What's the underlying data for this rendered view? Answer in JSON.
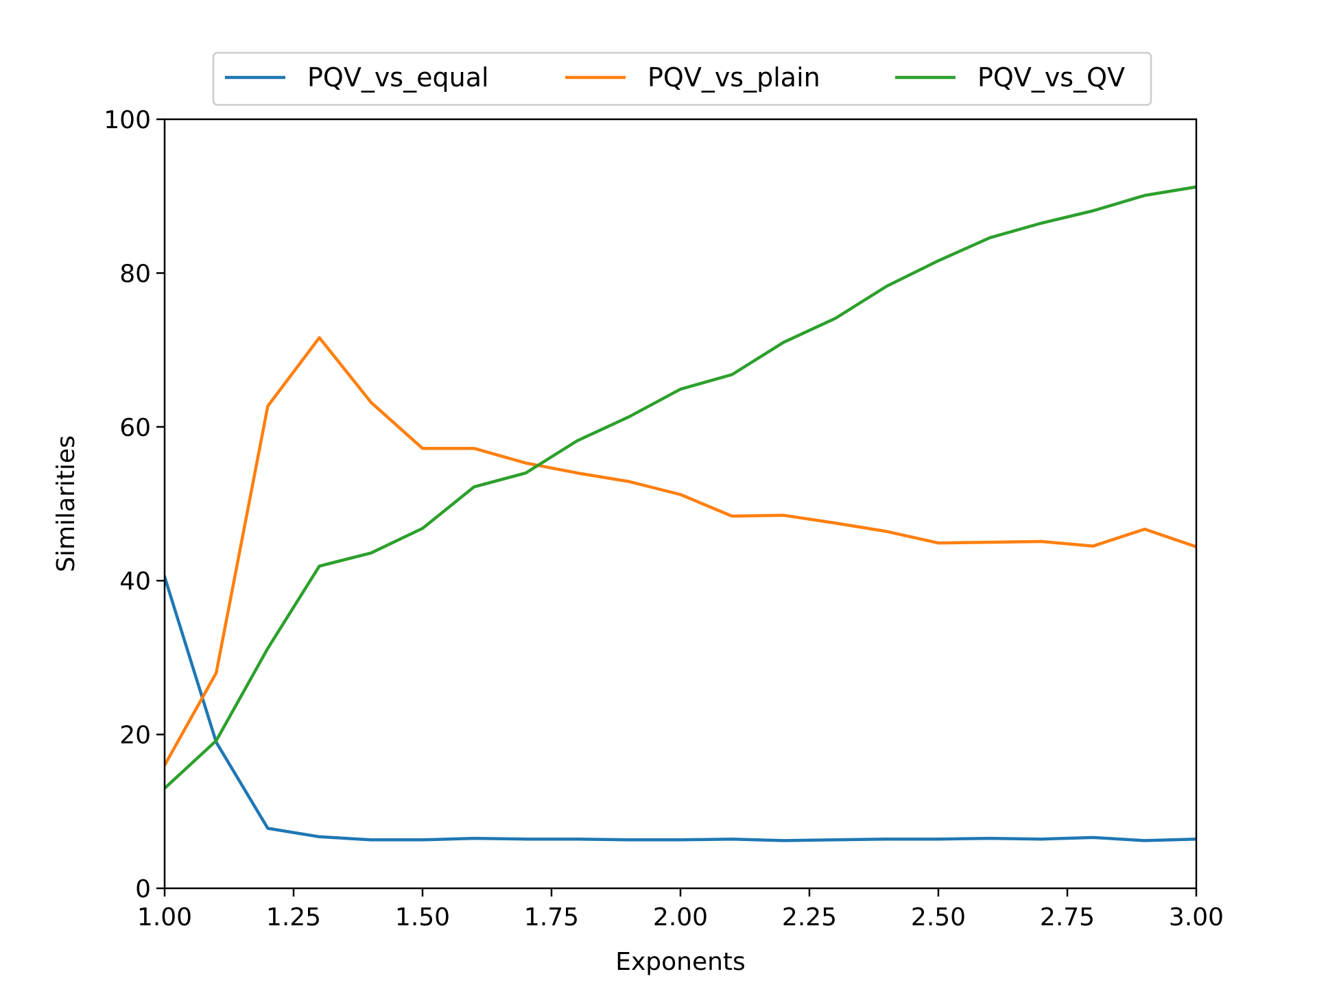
{
  "chart_data": {
    "type": "line",
    "title": "",
    "xlabel": "Exponents",
    "ylabel": "Similarities",
    "xlim": [
      1.0,
      3.0
    ],
    "ylim": [
      0,
      100
    ],
    "xticks": [
      "1.00",
      "1.25",
      "1.50",
      "1.75",
      "2.00",
      "2.25",
      "2.50",
      "2.75",
      "3.00"
    ],
    "yticks": [
      "0",
      "20",
      "40",
      "60",
      "80",
      "100"
    ],
    "grid": false,
    "legend_position": "top-center, above plot",
    "x": [
      1.0,
      1.1,
      1.2,
      1.3,
      1.4,
      1.5,
      1.6,
      1.7,
      1.8,
      1.9,
      2.0,
      2.1,
      2.2,
      2.3,
      2.4,
      2.5,
      2.6,
      2.7,
      2.8,
      2.9,
      3.0
    ],
    "series": [
      {
        "name": "PQV_vs_equal",
        "color": "#1f77b4",
        "values": [
          40.5,
          19.0,
          7.8,
          6.7,
          6.3,
          6.3,
          6.5,
          6.4,
          6.4,
          6.3,
          6.3,
          6.4,
          6.2,
          6.3,
          6.4,
          6.4,
          6.5,
          6.4,
          6.6,
          6.2,
          6.4
        ]
      },
      {
        "name": "PQV_vs_plain",
        "color": "#ff7f0e",
        "values": [
          16.0,
          28.0,
          62.7,
          71.6,
          63.2,
          57.2,
          57.2,
          55.3,
          54.0,
          52.9,
          51.2,
          48.4,
          48.5,
          47.5,
          46.4,
          44.9,
          45.0,
          45.1,
          44.5,
          46.7,
          44.4
        ]
      },
      {
        "name": "PQV_vs_QV",
        "color": "#2ca02c",
        "values": [
          13.0,
          19.2,
          31.2,
          41.9,
          43.6,
          46.8,
          52.2,
          54.0,
          58.2,
          61.3,
          64.9,
          66.8,
          71.0,
          74.1,
          78.3,
          81.6,
          84.6,
          86.5,
          88.1,
          90.1,
          91.2
        ]
      }
    ]
  }
}
